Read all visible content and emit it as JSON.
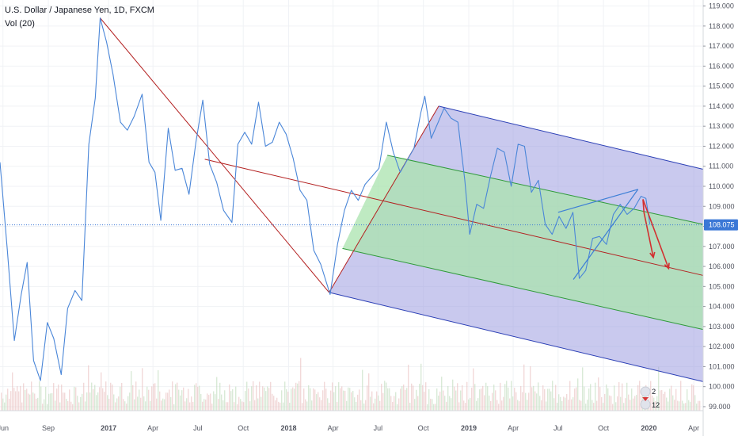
{
  "header": {
    "symbol_line": "U.S. Dollar / Japanese Yen, 1D, FXCM",
    "indicator_line": "Vol (20)"
  },
  "colors": {
    "price_line": "#4a86d8",
    "last_price_tag": "#3b78d6",
    "pitchfork_outer_fill": "#9c9ce0",
    "pitchfork_inner_fill": "#a9e3ad",
    "pitchfork_outer_line": "#2b3fb5",
    "pitchfork_inner_line": "#2f9a3a",
    "trend_line": "#b32020",
    "arrow": "#d23030",
    "triangle": "#3d7fd6",
    "volume_up": "#b9d9b6",
    "volume_down": "#e8b9b9"
  },
  "badges": {
    "top_count": "2",
    "bottom_count": "12"
  },
  "chart_data": {
    "type": "line",
    "title": "U.S. Dollar / Japanese Yen, 1D, FXCM",
    "x_tick_labels": [
      "Jun",
      "Sep",
      "2017",
      "Apr",
      "Jul",
      "Oct",
      "2018",
      "Apr",
      "Jul",
      "Oct",
      "2019",
      "Apr",
      "Jul",
      "Oct",
      "2020",
      "Apr"
    ],
    "x_ticks": [
      "2016-06-01",
      "2016-09-01",
      "2017-01-01",
      "2017-04-01",
      "2017-07-01",
      "2017-10-01",
      "2018-01-01",
      "2018-04-01",
      "2018-07-01",
      "2018-10-01",
      "2019-01-01",
      "2019-04-01",
      "2019-07-01",
      "2019-10-01",
      "2020-01-01",
      "2020-04-01"
    ],
    "xlim": [
      "2016-05-26",
      "2020-04-20"
    ],
    "y_tick_labels": [
      "99.000",
      "100.000",
      "101.000",
      "102.000",
      "103.000",
      "104.000",
      "105.000",
      "106.000",
      "107.000",
      "108.000",
      "109.000",
      "110.000",
      "111.000",
      "112.000",
      "113.000",
      "114.000",
      "115.000",
      "116.000",
      "117.000",
      "118.000",
      "119.000"
    ],
    "ylim": [
      98.8,
      119.3
    ],
    "last_price": "108.075",
    "series": [
      {
        "x": [
          "2016-05-26",
          "2016-06-10",
          "2016-06-24",
          "2016-07-08",
          "2016-07-20",
          "2016-08-02",
          "2016-08-16",
          "2016-08-30",
          "2016-09-12",
          "2016-09-27",
          "2016-10-10",
          "2016-10-25",
          "2016-11-08",
          "2016-11-22",
          "2016-12-05",
          "2016-12-15",
          "2016-12-28",
          "2017-01-10",
          "2017-01-25",
          "2017-02-08",
          "2017-02-22",
          "2017-03-10",
          "2017-03-24",
          "2017-04-05",
          "2017-04-17",
          "2017-05-02",
          "2017-05-16",
          "2017-05-30",
          "2017-06-13",
          "2017-06-27",
          "2017-07-11",
          "2017-07-25",
          "2017-08-08",
          "2017-08-22",
          "2017-09-08",
          "2017-09-20",
          "2017-10-04",
          "2017-10-18",
          "2017-11-01",
          "2017-11-15",
          "2017-11-29",
          "2017-12-13",
          "2017-12-27",
          "2018-01-10",
          "2018-01-24",
          "2018-02-07",
          "2018-02-21",
          "2018-03-07",
          "2018-03-26",
          "2018-04-10",
          "2018-04-24",
          "2018-05-08",
          "2018-05-22",
          "2018-06-05",
          "2018-06-19",
          "2018-07-03",
          "2018-07-18",
          "2018-08-01",
          "2018-08-15",
          "2018-08-29",
          "2018-09-12",
          "2018-09-26",
          "2018-10-04",
          "2018-10-17",
          "2018-10-31",
          "2018-11-12",
          "2018-11-26",
          "2018-12-10",
          "2018-12-24",
          "2019-01-03",
          "2019-01-17",
          "2019-01-31",
          "2019-02-14",
          "2019-02-28",
          "2019-03-14",
          "2019-03-28",
          "2019-04-11",
          "2019-04-24",
          "2019-05-08",
          "2019-05-22",
          "2019-06-05",
          "2019-06-19",
          "2019-07-03",
          "2019-07-17",
          "2019-07-31",
          "2019-08-13",
          "2019-08-26",
          "2019-09-09",
          "2019-09-23",
          "2019-10-07",
          "2019-10-21",
          "2019-11-04",
          "2019-11-18",
          "2019-12-02",
          "2019-12-16",
          "2019-12-26",
          "2020-01-03"
        ],
        "y": [
          111.2,
          106.8,
          102.3,
          104.6,
          106.2,
          101.3,
          100.3,
          103.2,
          102.4,
          100.6,
          103.9,
          104.8,
          104.3,
          112.1,
          114.4,
          118.4,
          117.2,
          115.6,
          113.2,
          112.8,
          113.5,
          114.6,
          111.2,
          110.7,
          108.3,
          112.9,
          110.8,
          110.9,
          109.6,
          112.2,
          114.3,
          111.1,
          110.2,
          108.8,
          108.2,
          112.1,
          112.7,
          112.1,
          114.2,
          112.0,
          112.2,
          113.2,
          112.6,
          111.4,
          109.8,
          109.3,
          106.8,
          106.1,
          104.6,
          107.1,
          108.8,
          109.8,
          109.3,
          110.1,
          110.5,
          110.9,
          113.2,
          111.7,
          110.7,
          111.3,
          111.9,
          113.7,
          114.5,
          112.4,
          113.2,
          113.9,
          113.4,
          113.2,
          110.3,
          107.6,
          109.1,
          108.9,
          110.5,
          111.9,
          111.7,
          110.0,
          112.1,
          112.0,
          109.7,
          110.3,
          108.1,
          107.6,
          108.5,
          107.9,
          108.7,
          105.4,
          105.8,
          107.4,
          107.5,
          107.1,
          108.6,
          109.1,
          108.6,
          108.9,
          109.5,
          109.4,
          108.1
        ]
      }
    ]
  }
}
